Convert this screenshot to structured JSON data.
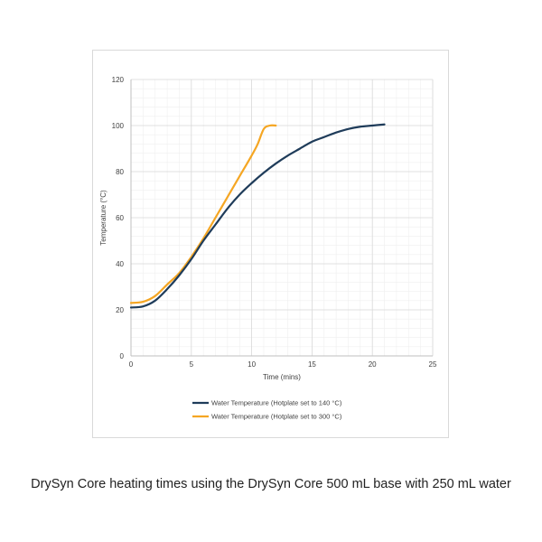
{
  "caption": "DrySyn Core heating times using the DrySyn Core 500 mL base with 250 mL water",
  "chart_data": {
    "type": "line",
    "title": "",
    "xlabel": "Time (mins)",
    "ylabel": "Temperature (°C)",
    "xlim": [
      0,
      25
    ],
    "ylim": [
      0,
      120
    ],
    "xticks": [
      0,
      5,
      10,
      15,
      20,
      25
    ],
    "yticks": [
      0,
      20,
      40,
      60,
      80,
      100,
      120
    ],
    "grid": true,
    "minor_grid": true,
    "legend_position": "bottom",
    "series": [
      {
        "name": "Water Temperature (Hotplate set to 140 °C)",
        "color": "#1f3c5a",
        "x": [
          0,
          1,
          2,
          3,
          4,
          5,
          6,
          7,
          8,
          9,
          10,
          11,
          12,
          13,
          14,
          15,
          16,
          17,
          18,
          19,
          20,
          21
        ],
        "y": [
          21,
          21.5,
          24,
          29,
          35,
          42,
          50,
          57,
          64,
          70,
          75,
          79.5,
          83.5,
          87,
          90,
          93,
          95,
          97,
          98.5,
          99.5,
          100,
          100.5
        ]
      },
      {
        "name": "Water Temperature (Hotplate set to 300 °C)",
        "color": "#f5a623",
        "x": [
          0,
          1,
          2,
          3,
          4,
          5,
          6,
          7,
          8,
          9,
          10,
          10.5,
          11,
          11.5,
          12
        ],
        "y": [
          23,
          23.5,
          26,
          31,
          36,
          43,
          51,
          60,
          69,
          78,
          87,
          92,
          98.5,
          100,
          100
        ]
      }
    ]
  }
}
